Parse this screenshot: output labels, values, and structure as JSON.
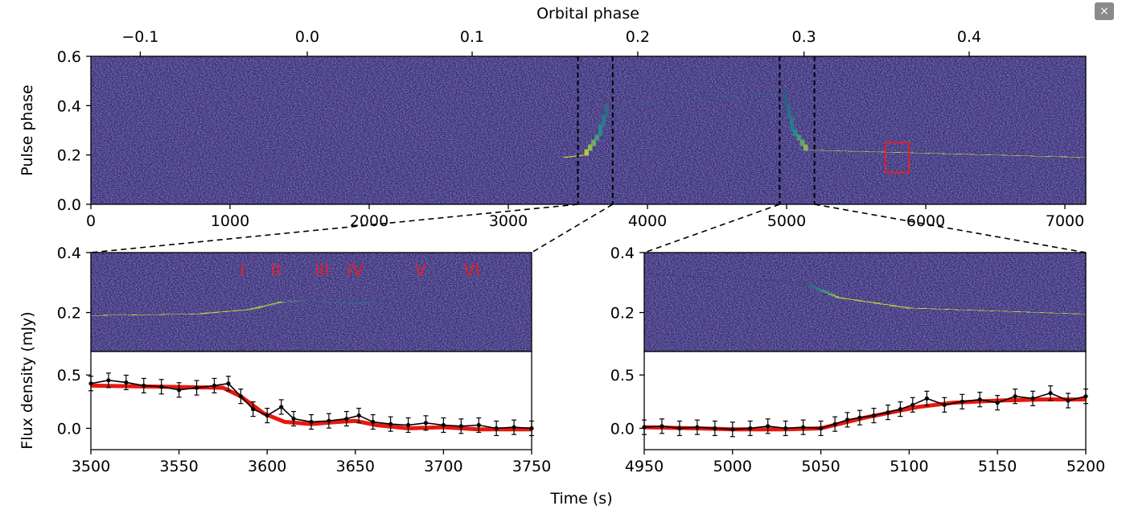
{
  "close_label": "×",
  "chart_data": [
    {
      "id": "top",
      "type": "heatmap",
      "top_xlabel": "Orbital phase",
      "ylabel": "Pulse phase",
      "xlim": [
        0,
        7150
      ],
      "ylim": [
        0,
        0.6
      ],
      "xticks": [
        0,
        1000,
        2000,
        3000,
        4000,
        5000,
        6000,
        7000
      ],
      "xtick_labels": [
        "0",
        "1000",
        "2000",
        "3000",
        "4000",
        "5000",
        "6000",
        "7000"
      ],
      "yticks": [
        0,
        0.2,
        0.4,
        0.6
      ],
      "ytick_labels": [
        "0.0",
        "0.2",
        "0.4",
        "0.6"
      ],
      "orbital_phase_ticks": [
        {
          "time": 355,
          "label": "−0.1"
        },
        {
          "time": 1555,
          "label": "0.0"
        },
        {
          "time": 2740,
          "label": "0.1"
        },
        {
          "time": 3930,
          "label": "0.2"
        },
        {
          "time": 5125,
          "label": "0.3"
        },
        {
          "time": 6312,
          "label": "0.4"
        }
      ],
      "dashed_lines": [
        3500,
        3750,
        4950,
        5200
      ],
      "highlight_box": {
        "x0": 5710,
        "x1": 5880,
        "y0": 0.13,
        "y1": 0.25,
        "color": "#e0202a"
      },
      "pulse_track": [
        {
          "time": 0,
          "phase": 0.19,
          "intensity": 0.55
        },
        {
          "time": 1800,
          "phase": 0.19,
          "intensity": 0.8
        },
        {
          "time": 3400,
          "phase": 0.19,
          "intensity": 1.0
        },
        {
          "time": 3550,
          "phase": 0.2,
          "intensity": 0.9
        },
        {
          "time": 3650,
          "phase": 0.28,
          "intensity": 0.5
        },
        {
          "time": 3720,
          "phase": 0.4,
          "intensity": 0.25
        },
        {
          "time": 4980,
          "phase": 0.45,
          "intensity": 0.25
        },
        {
          "time": 5050,
          "phase": 0.3,
          "intensity": 0.5
        },
        {
          "time": 5150,
          "phase": 0.22,
          "intensity": 0.85
        },
        {
          "time": 7150,
          "phase": 0.19,
          "intensity": 0.9
        }
      ]
    },
    {
      "id": "bottom-left",
      "type": "heatmap+line",
      "xlim": [
        3500,
        3750
      ],
      "xticks": [
        3500,
        3550,
        3600,
        3650,
        3700,
        3750
      ],
      "xtick_labels": [
        "3500",
        "3550",
        "3600",
        "3650",
        "3700",
        "3750"
      ],
      "heatmap_ylim": [
        0.07,
        0.4
      ],
      "heatmap_yticks": [
        0.2,
        0.4
      ],
      "heatmap_ytick_labels": [
        "0.2",
        "0.4"
      ],
      "flux_ylim": [
        -0.2,
        0.72
      ],
      "flux_yticks": [
        0,
        0.5
      ],
      "flux_ytick_labels": [
        "0.0",
        "0.5"
      ],
      "annotations": [
        {
          "label": "I",
          "time": 3586
        },
        {
          "label": "II",
          "time": 3605
        },
        {
          "label": "III",
          "time": 3631
        },
        {
          "label": "IV",
          "time": 3650
        },
        {
          "label": "V",
          "time": 3687
        },
        {
          "label": "VI",
          "time": 3716
        }
      ],
      "model": {
        "x": [
          3500,
          3540,
          3575,
          3585,
          3598,
          3610,
          3625,
          3640,
          3650,
          3662,
          3680,
          3700,
          3720,
          3750
        ],
        "y": [
          0.4,
          0.39,
          0.38,
          0.3,
          0.14,
          0.06,
          0.04,
          0.06,
          0.07,
          0.03,
          0.0,
          0.01,
          -0.01,
          -0.01
        ]
      },
      "measured_series": {
        "x": [
          3500,
          3510,
          3520,
          3530,
          3540,
          3550,
          3560,
          3570,
          3578,
          3585,
          3592,
          3600,
          3608,
          3615,
          3625,
          3635,
          3645,
          3652,
          3660,
          3670,
          3680,
          3690,
          3700,
          3710,
          3720,
          3730,
          3740,
          3750
        ],
        "y": [
          0.42,
          0.45,
          0.43,
          0.4,
          0.39,
          0.36,
          0.38,
          0.4,
          0.42,
          0.3,
          0.18,
          0.12,
          0.2,
          0.09,
          0.06,
          0.07,
          0.09,
          0.12,
          0.06,
          0.04,
          0.03,
          0.05,
          0.03,
          0.02,
          0.03,
          0.0,
          0.01,
          0.0
        ]
      },
      "pulse_track": [
        {
          "time": 3500,
          "phase": 0.19,
          "intensity": 1.0
        },
        {
          "time": 3560,
          "phase": 0.195,
          "intensity": 1.0
        },
        {
          "time": 3590,
          "phase": 0.21,
          "intensity": 0.85
        },
        {
          "time": 3608,
          "phase": 0.235,
          "intensity": 0.75
        },
        {
          "time": 3625,
          "phase": 0.24,
          "intensity": 0.25
        },
        {
          "time": 3650,
          "phase": 0.23,
          "intensity": 0.45
        },
        {
          "time": 3670,
          "phase": 0.24,
          "intensity": 0.15
        },
        {
          "time": 3750,
          "phase": 0.24,
          "intensity": 0.1
        }
      ]
    },
    {
      "id": "bottom-right",
      "type": "heatmap+line",
      "xlim": [
        4950,
        5200
      ],
      "xticks": [
        4950,
        5000,
        5050,
        5100,
        5150,
        5200
      ],
      "xtick_labels": [
        "4950",
        "5000",
        "5050",
        "5100",
        "5150",
        "5200"
      ],
      "heatmap_ylim": [
        0.07,
        0.4
      ],
      "heatmap_yticks": [
        0.2,
        0.4
      ],
      "heatmap_ytick_labels": [
        "0.2",
        "0.4"
      ],
      "flux_ylim": [
        -0.2,
        0.72
      ],
      "flux_yticks": [
        0,
        0.5
      ],
      "flux_ytick_labels": [
        "0.0",
        "0.5"
      ],
      "model": {
        "x": [
          4950,
          4980,
          5000,
          5030,
          5050,
          5060,
          5075,
          5090,
          5105,
          5125,
          5150,
          5175,
          5200
        ],
        "y": [
          0.01,
          0.0,
          -0.01,
          -0.01,
          0.0,
          0.04,
          0.1,
          0.15,
          0.2,
          0.24,
          0.26,
          0.27,
          0.27
        ]
      },
      "measured_series": {
        "x": [
          4950,
          4960,
          4970,
          4980,
          4990,
          5000,
          5010,
          5020,
          5030,
          5040,
          5050,
          5058,
          5065,
          5072,
          5080,
          5088,
          5095,
          5102,
          5110,
          5120,
          5130,
          5140,
          5150,
          5160,
          5170,
          5180,
          5190,
          5200
        ],
        "y": [
          0.01,
          0.02,
          0.0,
          0.01,
          0.0,
          -0.01,
          0.0,
          0.02,
          0.0,
          0.01,
          0.0,
          0.04,
          0.08,
          0.1,
          0.12,
          0.15,
          0.18,
          0.22,
          0.28,
          0.22,
          0.25,
          0.27,
          0.24,
          0.3,
          0.28,
          0.33,
          0.26,
          0.3
        ]
      },
      "pulse_track": [
        {
          "time": 4950,
          "phase": 0.33,
          "intensity": 0.08
        },
        {
          "time": 5040,
          "phase": 0.3,
          "intensity": 0.2
        },
        {
          "time": 5060,
          "phase": 0.25,
          "intensity": 0.85
        },
        {
          "time": 5100,
          "phase": 0.215,
          "intensity": 0.95
        },
        {
          "time": 5150,
          "phase": 0.205,
          "intensity": 0.9
        },
        {
          "time": 5200,
          "phase": 0.195,
          "intensity": 0.9
        }
      ]
    }
  ],
  "shared": {
    "flux_ylabel": "Flux density (mJy)",
    "time_xlabel": "Time (s)"
  },
  "colors": {
    "background": "#45257a",
    "signal_mid": "#21918c",
    "signal_high": "#f5e21d",
    "model_line": "#e8180f",
    "data_points": "#000000",
    "annotation": "#e0202a"
  }
}
